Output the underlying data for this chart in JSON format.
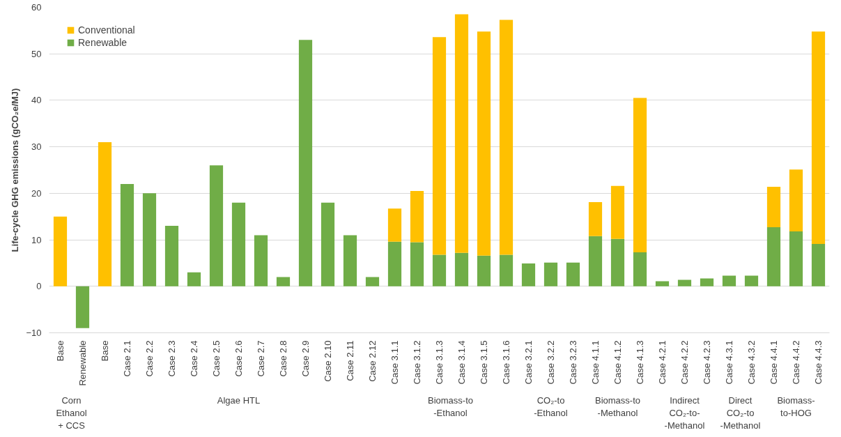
{
  "chart_data": {
    "type": "bar",
    "ylabel": "Life-cycle GHG emissions (gCO₂e/MJ)",
    "stacked": true,
    "categories": [
      "Base",
      "Renewable",
      "Base",
      "Case 2.1",
      "Case 2.2",
      "Case 2.3",
      "Case 2.4",
      "Case 2.5",
      "Case 2.6",
      "Case 2.7",
      "Case 2.8",
      "Case 2.9",
      "Case 2.10",
      "Case 2.11",
      "Case 2.12",
      "Case 3.1.1",
      "Case 3.1.2",
      "Case 3.1.3",
      "Case 3.1.4",
      "Case 3.1.5",
      "Case 3.1.6",
      "Case 3.2.1",
      "Case 3.2.2",
      "Case 3.2.3",
      "Case 4.1.1",
      "Case 4.1.2",
      "Case 4.1.3",
      "Case 4.2.1",
      "Case 4.2.2",
      "Case 4.2.3",
      "Case 4.3.1",
      "Case 4.3.2",
      "Case 4.4.1",
      "Case 4.4.2",
      "Case 4.4.3"
    ],
    "series": [
      {
        "name": "Renewable",
        "color": "#70ad47",
        "values": [
          null,
          -9,
          null,
          22,
          20,
          13,
          3,
          26,
          18,
          11,
          2,
          53,
          18,
          11,
          2,
          9.6,
          9.5,
          6.8,
          7.2,
          6.6,
          6.8,
          4.9,
          5.1,
          5.1,
          10.8,
          10.2,
          7.3,
          1.1,
          1.4,
          1.7,
          2.3,
          2.3,
          12.7,
          11.8,
          9.1
        ]
      },
      {
        "name": "Conventional",
        "color": "#ffc000",
        "values": [
          15,
          null,
          31,
          null,
          null,
          null,
          null,
          null,
          null,
          null,
          null,
          null,
          null,
          null,
          null,
          7.1,
          11.0,
          46.8,
          51.3,
          48.2,
          50.5,
          null,
          null,
          null,
          7.3,
          11.4,
          33.2,
          null,
          null,
          null,
          null,
          null,
          8.7,
          13.3,
          45.7
        ]
      }
    ],
    "annotations": [
      "Corn\nEthanol\n+ CCS",
      "Algae HTL",
      "Biomass-to\n-Ethanol",
      "CO₂-to\n-Ethanol",
      "Biomass-to\n-Methanol",
      "Indirect\nCO₂-to-\n-Methanol",
      "Direct\nCO₂-to\n-Methanol",
      "Biomass-\nto-HOG"
    ],
    "ylim": [
      -10,
      60
    ],
    "yticks": [
      -10,
      0,
      10,
      20,
      30,
      40,
      50,
      60
    ],
    "grid": "y",
    "legend": "top left"
  }
}
